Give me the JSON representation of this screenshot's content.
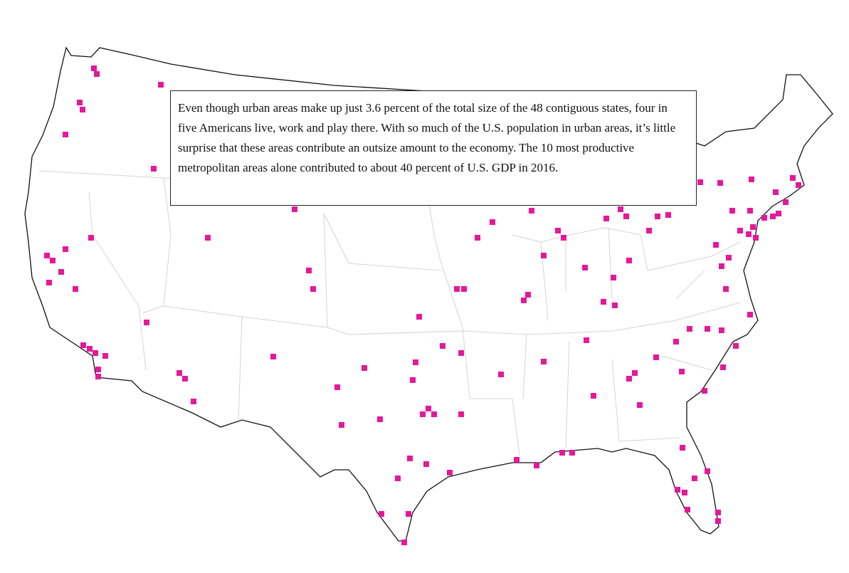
{
  "annotation": {
    "text": "Even though urban areas make up just 3.6 percent of the total size of the 48 contiguous states, four in five Americans live, work and play there. With so much of the U.S. population in urban areas, it’s little surprise that these areas contribute an outsize amount to the economy. The 10 most productive metropolitan areas alone contributed to about 40 percent of U.S. GDP in 2016."
  }
}
